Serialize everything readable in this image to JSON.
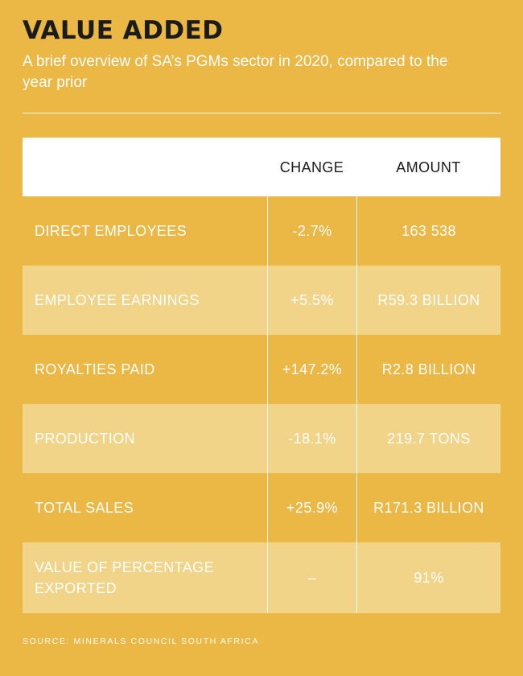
{
  "title": "VALUE ADDED",
  "subtitle": "A brief overview of SA’s PGMs sector in 2020, compared to the year prior",
  "source": "SOURCE: MINERALS COUNCIL SOUTH AFRICA",
  "chart_data": {
    "type": "table",
    "columns": [
      "",
      "CHANGE",
      "AMOUNT"
    ],
    "rows": [
      {
        "label": "DIRECT EMPLOYEES",
        "change": "-2.7%",
        "amount": "163 538"
      },
      {
        "label": "EMPLOYEE EARNINGS",
        "change": "+5.5%",
        "amount": "R59.3 BILLION"
      },
      {
        "label": "ROYALTIES PAID",
        "change": "+147.2%",
        "amount": "R2.8 BILLION"
      },
      {
        "label": "PRODUCTION",
        "change": "-18.1%",
        "amount": "219.7 TONS"
      },
      {
        "label": "TOTAL SALES",
        "change": "+25.9%",
        "amount": "R171.3 BILLION"
      },
      {
        "label": "VALUE OF PERCENTAGE EXPORTED",
        "change": "–",
        "amount": "91%"
      }
    ]
  },
  "colors": {
    "background": "#ebb745",
    "shade": "#f2d489",
    "header": "#ffffff"
  }
}
